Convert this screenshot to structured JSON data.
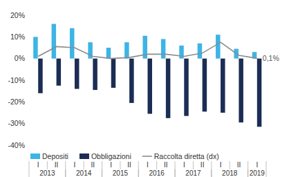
{
  "chart_data": {
    "type": "bar",
    "categories": [
      "I",
      "II",
      "I",
      "II",
      "I",
      "II",
      "I",
      "II",
      "I",
      "II",
      "I",
      "II",
      "I"
    ],
    "groups": [
      {
        "label": "2013",
        "count": 2
      },
      {
        "label": "2014",
        "count": 2
      },
      {
        "label": "2015",
        "count": 2
      },
      {
        "label": "2016",
        "count": 2
      },
      {
        "label": "2017",
        "count": 2
      },
      {
        "label": "2018",
        "count": 2
      },
      {
        "label": "2019",
        "count": 1
      }
    ],
    "series": [
      {
        "name": "Depositi",
        "type": "bar",
        "color": "#3db4e6",
        "values": [
          10,
          16,
          14,
          7.5,
          5,
          7.5,
          10.5,
          9,
          6,
          7,
          11,
          4.5,
          3
        ]
      },
      {
        "name": "Obbligazioni",
        "type": "bar",
        "color": "#1c2d55",
        "values": [
          -16,
          -12.5,
          -14,
          -14.5,
          -13.5,
          -20.5,
          -25.5,
          -27.5,
          -26.5,
          -24.5,
          -25,
          -29.5,
          -31.5
        ]
      },
      {
        "name": "Raccolta diretta (dx)",
        "type": "line",
        "color": "#8c8c8c",
        "values": [
          1,
          5.5,
          5,
          1,
          0,
          0.5,
          2,
          2,
          1,
          2.5,
          7.5,
          1.5,
          0.1
        ],
        "value_labels": [
          null,
          null,
          null,
          null,
          null,
          null,
          null,
          null,
          null,
          null,
          null,
          null,
          "0,1%"
        ]
      }
    ],
    "ylim": [
      -40,
      20
    ],
    "yticks": [
      {
        "value": 20,
        "label": "20%"
      },
      {
        "value": 10,
        "label": "10%"
      },
      {
        "value": 0,
        "label": "0%"
      },
      {
        "value": -10,
        "label": "-10%"
      },
      {
        "value": -20,
        "label": "-20%"
      },
      {
        "value": -30,
        "label": "-30%"
      },
      {
        "value": -40,
        "label": "-40%"
      }
    ],
    "grid": false,
    "legend": "bottom"
  }
}
